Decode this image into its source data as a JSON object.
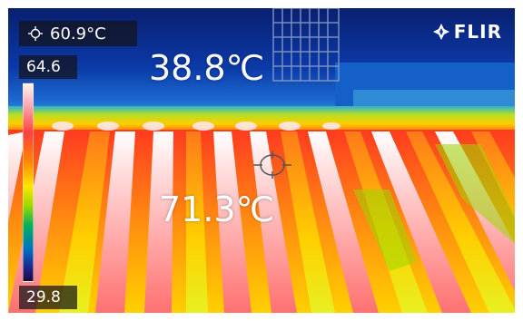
{
  "spot_readout": {
    "value": "60.9°C",
    "icon": "crosshair-icon"
  },
  "color_scale": {
    "max": "64.6",
    "min": "29.8",
    "palette": [
      "#fff6f0",
      "#ffb0b8",
      "#ff4040",
      "#ff8a00",
      "#ffe600",
      "#9ad800",
      "#00b060",
      "#0070c0",
      "#20208a",
      "#1a0a3a"
    ]
  },
  "brand": {
    "name": "FLIR",
    "icon": "flir-logo-icon"
  },
  "annotations": {
    "upper_temperature": "38.8℃",
    "lower_temperature": "71.3℃"
  },
  "colors": {
    "sky": "#0a2a8a",
    "roof_hot": "#ff3020",
    "roof_warm": "#ffe400",
    "text": "#ffffff"
  }
}
